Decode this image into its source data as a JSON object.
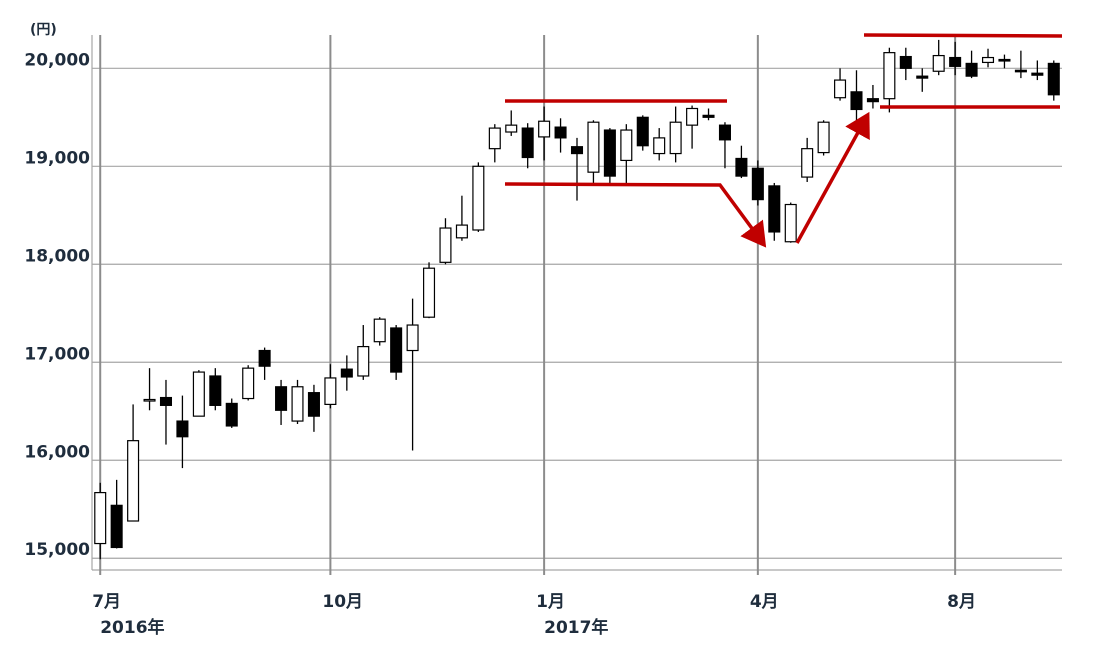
{
  "chart_data": {
    "type": "candlestick",
    "y_label": "(円)",
    "ylim": [
      14880,
      20340
    ],
    "yticks": [
      {
        "value": 15000,
        "label": "15,000"
      },
      {
        "value": 16000,
        "label": "16,000"
      },
      {
        "value": 17000,
        "label": "17,000"
      },
      {
        "value": 18000,
        "label": "18,000"
      },
      {
        "value": 19000,
        "label": "19,000"
      },
      {
        "value": 20000,
        "label": "20,000"
      }
    ],
    "grid": true,
    "up_color": "#ffffff",
    "down_color": "#000000",
    "edge_color": "#000000",
    "categories": [
      "7月",
      null,
      null,
      null,
      null,
      null,
      null,
      null,
      null,
      null,
      null,
      null,
      null,
      null,
      "10月",
      null,
      null,
      null,
      null,
      null,
      null,
      null,
      null,
      null,
      null,
      null,
      null,
      "1月",
      null,
      null,
      null,
      null,
      null,
      null,
      null,
      null,
      null,
      null,
      null,
      null,
      "4月",
      null,
      null,
      null,
      null,
      null,
      null,
      null,
      null,
      null,
      null,
      null,
      "8月",
      null,
      null,
      null,
      null,
      null,
      null
    ],
    "category_sublabels": [
      "2016年",
      null,
      null,
      null,
      null,
      null,
      null,
      null,
      null,
      null,
      null,
      null,
      null,
      null,
      null,
      null,
      null,
      null,
      null,
      null,
      null,
      null,
      null,
      null,
      null,
      null,
      null,
      "2017年",
      null,
      null,
      null,
      null,
      null,
      null,
      null,
      null,
      null,
      null,
      null,
      null,
      null,
      null,
      null,
      null,
      null,
      null,
      null,
      null,
      null,
      null,
      null,
      null,
      null,
      null,
      null,
      null,
      null,
      null,
      null
    ],
    "open": [
      15150,
      15540,
      15380,
      16610,
      16640,
      16400,
      16450,
      16860,
      16580,
      16630,
      17120,
      16750,
      16400,
      16690,
      16570,
      16930,
      16860,
      17210,
      17350,
      17120,
      17460,
      18020,
      18270,
      18350,
      19180,
      19350,
      19390,
      19300,
      19400,
      19200,
      18940,
      19370,
      19060,
      19500,
      19130,
      19130,
      19420,
      19520,
      19420,
      19080,
      18980,
      18800,
      18230,
      18890,
      19140,
      19700,
      19760,
      19690,
      19690,
      20120,
      19920,
      19970,
      20110,
      20050,
      20060,
      20090,
      19980,
      19950,
      20050
    ],
    "high": [
      15770,
      15800,
      16570,
      16940,
      16820,
      16660,
      16920,
      16940,
      16630,
      16970,
      17150,
      16820,
      16820,
      16770,
      16980,
      17070,
      17380,
      17460,
      17380,
      17650,
      18020,
      18470,
      18700,
      19040,
      19430,
      19570,
      19440,
      19610,
      19490,
      19290,
      19470,
      19390,
      19430,
      19520,
      19390,
      19610,
      19620,
      19590,
      19450,
      19210,
      19060,
      18830,
      18630,
      19290,
      19470,
      20000,
      19980,
      19830,
      20210,
      20210,
      20000,
      20290,
      20270,
      20180,
      20200,
      20140,
      20180,
      20080,
      20080
    ],
    "low": [
      14990,
      15100,
      15380,
      16510,
      16160,
      15920,
      16450,
      16510,
      16330,
      16610,
      16820,
      16360,
      16370,
      16290,
      16530,
      16710,
      16820,
      17170,
      16820,
      16100,
      17450,
      18000,
      18240,
      18330,
      19040,
      19310,
      18980,
      19060,
      19140,
      18650,
      18800,
      18810,
      18820,
      19160,
      19060,
      19040,
      19180,
      19470,
      18980,
      18880,
      18600,
      18240,
      18220,
      18840,
      19110,
      19670,
      19430,
      19590,
      19550,
      19880,
      19760,
      19930,
      19930,
      19900,
      20010,
      20000,
      19900,
      19880,
      19670
    ],
    "close": [
      15670,
      15110,
      16200,
      16620,
      16560,
      16240,
      16900,
      16560,
      16350,
      16940,
      16960,
      16510,
      16750,
      16450,
      16840,
      16850,
      17160,
      17440,
      16900,
      17380,
      17960,
      18370,
      18400,
      19000,
      19390,
      19420,
      19090,
      19460,
      19290,
      19130,
      19450,
      18900,
      19370,
      19210,
      19290,
      19450,
      19590,
      19500,
      19270,
      18900,
      18660,
      18330,
      18610,
      19180,
      19450,
      19880,
      19580,
      19660,
      20160,
      20000,
      19900,
      20130,
      20020,
      19920,
      20110,
      20080,
      19970,
      19930,
      19730
    ]
  }
}
